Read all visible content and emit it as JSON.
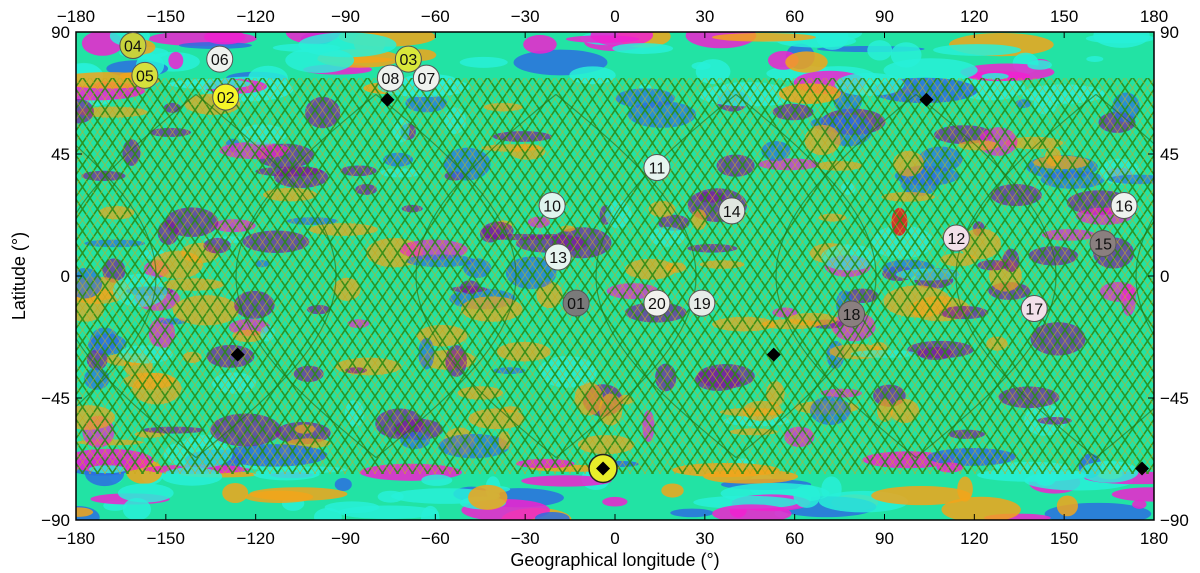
{
  "axes": {
    "xlabel": "Geographical longitude (°)",
    "ylabel": "Latitude (°)",
    "x_ticks": [
      "−180",
      "−150",
      "−120",
      "−90",
      "−60",
      "−30",
      "0",
      "30",
      "60",
      "90",
      "120",
      "150",
      "180"
    ],
    "y_ticks": [
      "90",
      "45",
      "0",
      "−45",
      "−90"
    ],
    "xlim": [
      -180,
      180
    ],
    "ylim": [
      -90,
      90
    ]
  },
  "map": {
    "projection": "equirectangular",
    "track_band_lat": [
      -67,
      67
    ],
    "colors": {
      "background": "#22e3a4",
      "cyan": "#28f0d8",
      "blue": "#2b6fe0",
      "magenta": "#f021d0",
      "purple": "#7a1a9e",
      "orange": "#f2a51a",
      "green_track": "#2d8a12",
      "yellow_track": "#d4b21a",
      "red": "#e02020"
    }
  },
  "markers": [
    {
      "label": "01",
      "lon": -13,
      "lat": -10,
      "fill": "#7a7a7a"
    },
    {
      "label": "02",
      "lon": -130,
      "lat": 66,
      "fill": "#f5f528"
    },
    {
      "label": "03",
      "lon": -69,
      "lat": 80,
      "fill": "#d9e83a"
    },
    {
      "label": "04",
      "lon": -161,
      "lat": 85,
      "fill": "#c8d23c"
    },
    {
      "label": "05",
      "lon": -157,
      "lat": 74,
      "fill": "#d6e03c"
    },
    {
      "label": "06",
      "lon": -132,
      "lat": 80,
      "fill": "#eef2ee"
    },
    {
      "label": "07",
      "lon": -63,
      "lat": 73,
      "fill": "#eef2ee"
    },
    {
      "label": "08",
      "lon": -75,
      "lat": 73,
      "fill": "#eef2ee"
    },
    {
      "label": "10",
      "lon": -21,
      "lat": 26,
      "fill": "#dff5ee"
    },
    {
      "label": "11",
      "lon": 14,
      "lat": 40,
      "fill": "#e6f5f0"
    },
    {
      "label": "12",
      "lon": 114,
      "lat": 14,
      "fill": "#f2e0ea"
    },
    {
      "label": "13",
      "lon": -19,
      "lat": 7,
      "fill": "#e6f5f0"
    },
    {
      "label": "14",
      "lon": 39,
      "lat": 24,
      "fill": "#e0e6e0"
    },
    {
      "label": "15",
      "lon": 163,
      "lat": 12,
      "fill": "#8a7f7f"
    },
    {
      "label": "16",
      "lon": 170,
      "lat": 26,
      "fill": "#eef2ee"
    },
    {
      "label": "17",
      "lon": 140,
      "lat": -12,
      "fill": "#f2e0ea"
    },
    {
      "label": "18",
      "lon": 79,
      "lat": -14,
      "fill": "#8a7f7f"
    },
    {
      "label": "19",
      "lon": 29,
      "lat": -10,
      "fill": "#e6ece8"
    },
    {
      "label": "20",
      "lon": 14,
      "lat": -10,
      "fill": "#f2f2ee"
    }
  ],
  "diamonds": [
    {
      "lon": -76,
      "lat": 65
    },
    {
      "lon": 104,
      "lat": 65
    },
    {
      "lon": -126,
      "lat": -29
    },
    {
      "lon": 53,
      "lat": -29
    },
    {
      "lon": 176,
      "lat": -71
    },
    {
      "lon": -3,
      "lat": -71
    }
  ],
  "pole_marker": {
    "lon": -4,
    "lat": -71
  }
}
